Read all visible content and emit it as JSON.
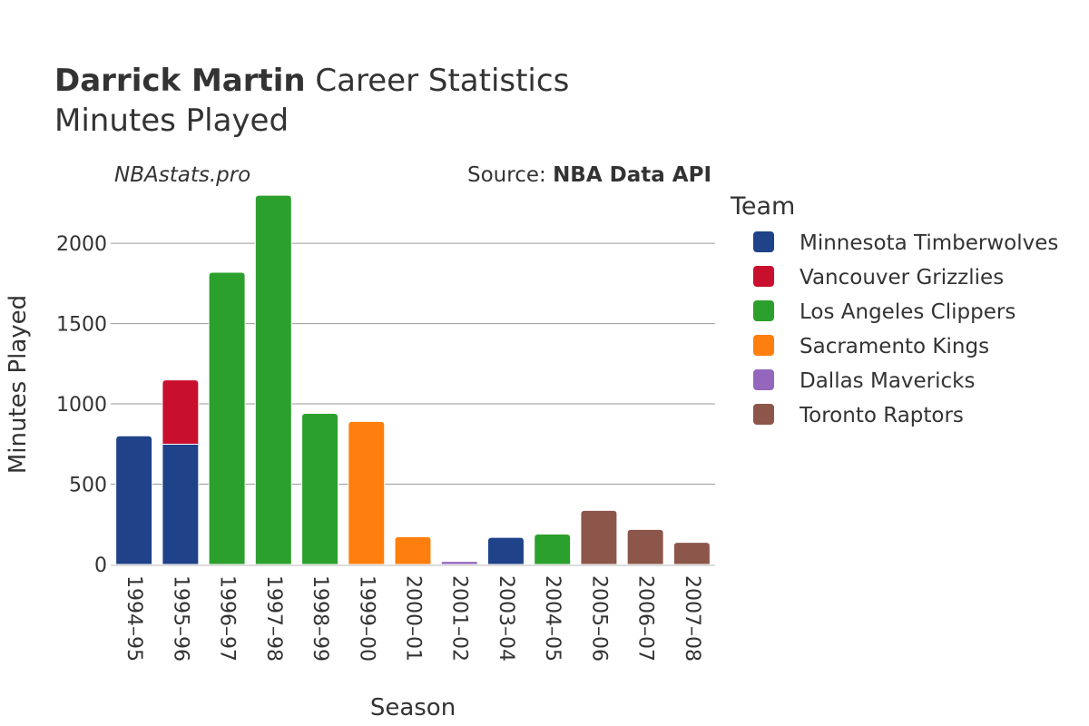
{
  "header": {
    "title_bold": "Darrick Martin",
    "title_rest": " Career Statistics",
    "subtitle": "Minutes Played",
    "site": "NBAstats.pro",
    "source_prefix": "Source: ",
    "source_bold": "NBA Data API"
  },
  "legend": {
    "title": "Team"
  },
  "colors": {
    "Minnesota Timberwolves": "#1f4288",
    "Vancouver Grizzlies": "#c8102e",
    "Los Angeles Clippers": "#2ca02c",
    "Sacramento Kings": "#ff7f0e",
    "Dallas Mavericks": "#9467bd",
    "Toronto Raptors": "#8c564b"
  },
  "chart_data": {
    "type": "bar",
    "stacked": true,
    "xlabel": "Season",
    "ylabel": "Minutes Played",
    "ylim": [
      0,
      2300
    ],
    "yticks": [
      0,
      500,
      1000,
      1500,
      2000
    ],
    "grid": true,
    "legend_position": "right",
    "categories": [
      "1994–95",
      "1995–96",
      "1996–97",
      "1997–98",
      "1998–99",
      "1999–00",
      "2000–01",
      "2001–02",
      "2003–04",
      "2004–05",
      "2005–06",
      "2006–07",
      "2007–08"
    ],
    "series": [
      {
        "name": "Minnesota Timberwolves",
        "values": [
          801,
          749,
          0,
          0,
          0,
          0,
          0,
          0,
          169,
          0,
          0,
          0,
          0
        ]
      },
      {
        "name": "Vancouver Grizzlies",
        "values": [
          0,
          400,
          0,
          0,
          0,
          0,
          0,
          0,
          0,
          0,
          0,
          0,
          0
        ]
      },
      {
        "name": "Los Angeles Clippers",
        "values": [
          0,
          0,
          1820,
          2299,
          941,
          0,
          0,
          0,
          0,
          189,
          0,
          0,
          0
        ]
      },
      {
        "name": "Sacramento Kings",
        "values": [
          0,
          0,
          0,
          0,
          0,
          891,
          173,
          0,
          0,
          0,
          0,
          0,
          0
        ]
      },
      {
        "name": "Dallas Mavericks",
        "values": [
          0,
          0,
          0,
          0,
          0,
          0,
          0,
          19,
          0,
          0,
          0,
          0,
          0
        ]
      },
      {
        "name": "Toronto Raptors",
        "values": [
          0,
          0,
          0,
          0,
          0,
          0,
          0,
          0,
          0,
          0,
          337,
          218,
          138
        ]
      }
    ]
  }
}
